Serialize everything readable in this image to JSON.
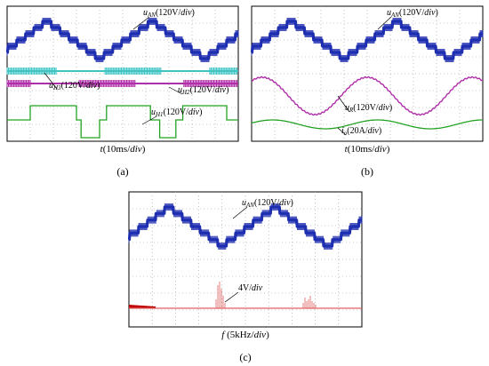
{
  "chart_data": [
    {
      "type": "line",
      "panel": "(a)",
      "caption": "(a)",
      "xlabel": "t(10ms/div)",
      "grid": true,
      "series": [
        {
          "name": "uAN(120V/div)",
          "color": "#1f2fb0",
          "kind": "staircase-triangle",
          "periods": 2.2,
          "levels": 6
        },
        {
          "name": "uH3(120V/div)",
          "color": "#3fc4c4",
          "kind": "pwm-band"
        },
        {
          "name": "uH2(120V/div)",
          "color": "#b02ea8",
          "kind": "pwm-band"
        },
        {
          "name": "uH1(120V/div)",
          "color": "#22a322",
          "kind": "square"
        }
      ]
    },
    {
      "type": "line",
      "panel": "(b)",
      "caption": "(b)",
      "xlabel": "t(10ms/div)",
      "grid": true,
      "series": [
        {
          "name": "uAN(120V/div)",
          "color": "#1f2fb0",
          "kind": "staircase-triangle",
          "periods": 2.2,
          "levels": 6
        },
        {
          "name": "uR(120V/div)",
          "color": "#b02ea8",
          "kind": "sine",
          "periods": 2.2
        },
        {
          "name": "io(20A/div)",
          "color": "#22a322",
          "kind": "sine-small",
          "periods": 2.2
        }
      ]
    },
    {
      "type": "line",
      "panel": "(c)",
      "caption": "(c)",
      "xlabel": "f (5kHz/div)",
      "grid": true,
      "series": [
        {
          "name": "uAN(120V/div)",
          "color": "#1f2fb0",
          "kind": "staircase-triangle",
          "periods": 2.2,
          "levels": 6
        },
        {
          "name": "4V/div",
          "color": "#e06060",
          "kind": "spectrum"
        }
      ]
    }
  ],
  "labels": {
    "a": {
      "uan_sym": "u",
      "uan_sub": "AN",
      "uan_unit": "(120V/",
      "uan_div": "div",
      "uan_close": ")",
      "uh3_sym": "u",
      "uh3_sub": "H3",
      "uh3_unit": "(120V/",
      "uh3_div": "div",
      "uh3_close": ")",
      "uh2_sym": "u",
      "uh2_sub": "H2",
      "uh2_unit": "(120V/",
      "uh2_div": "div",
      "uh2_close": ")",
      "uh1_sym": "u",
      "uh1_sub": "H1",
      "uh1_unit": "(120V/",
      "uh1_div": "div",
      "uh1_close": ")",
      "x_sym": "t",
      "x_unit": "(10ms/",
      "x_div": "div",
      "x_close": ")",
      "caption": "(a)"
    },
    "b": {
      "uan_sym": "u",
      "uan_sub": "AN",
      "uan_unit": "(120V/",
      "uan_div": "div",
      "uan_close": ")",
      "ur_sym": "u",
      "ur_sub": "R",
      "ur_unit": "(120V/",
      "ur_div": "div",
      "ur_close": ")",
      "io_sym": "i",
      "io_sub": "o",
      "io_unit": "(20A/",
      "io_div": "div",
      "io_close": ")",
      "x_sym": "t",
      "x_unit": "(10ms/",
      "x_div": "div",
      "x_close": ")",
      "caption": "(b)"
    },
    "c": {
      "uan_sym": "u",
      "uan_sub": "AN",
      "uan_unit": "(120V/",
      "uan_div": "div",
      "uan_close": ")",
      "spec_unit": "4V/",
      "spec_div": "div",
      "x_sym": "f",
      "x_unit": " (5kHz/",
      "x_div": "div",
      "x_close": ")",
      "caption": "(c)"
    }
  },
  "colors": {
    "blue": "#1f2fb0",
    "cyan": "#3fc4c4",
    "magenta": "#b02ea8",
    "green": "#22a322",
    "red": "#e06060",
    "grid": "#999999",
    "frame": "#000000"
  }
}
